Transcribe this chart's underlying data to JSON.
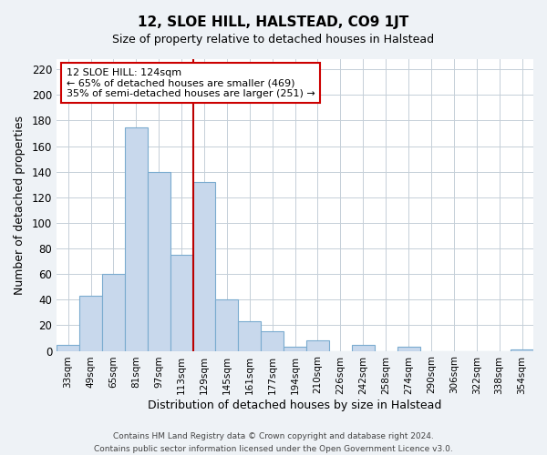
{
  "title": "12, SLOE HILL, HALSTEAD, CO9 1JT",
  "subtitle": "Size of property relative to detached houses in Halstead",
  "xlabel": "Distribution of detached houses by size in Halstead",
  "ylabel": "Number of detached properties",
  "bar_labels": [
    "33sqm",
    "49sqm",
    "65sqm",
    "81sqm",
    "97sqm",
    "113sqm",
    "129sqm",
    "145sqm",
    "161sqm",
    "177sqm",
    "194sqm",
    "210sqm",
    "226sqm",
    "242sqm",
    "258sqm",
    "274sqm",
    "290sqm",
    "306sqm",
    "322sqm",
    "338sqm",
    "354sqm"
  ],
  "bar_heights": [
    5,
    43,
    60,
    175,
    140,
    75,
    132,
    40,
    23,
    15,
    3,
    8,
    0,
    5,
    0,
    3,
    0,
    0,
    0,
    0,
    1
  ],
  "bar_color": "#c8d8ec",
  "bar_edge_color": "#7aabcf",
  "ylim": [
    0,
    228
  ],
  "yticks": [
    0,
    20,
    40,
    60,
    80,
    100,
    120,
    140,
    160,
    180,
    200,
    220
  ],
  "property_bin_index": 5.5,
  "annotation_title": "12 SLOE HILL: 124sqm",
  "annotation_line1": "← 65% of detached houses are smaller (469)",
  "annotation_line2": "35% of semi-detached houses are larger (251) →",
  "vline_color": "#bb0000",
  "annotation_box_edge_color": "#cc0000",
  "footer_line1": "Contains HM Land Registry data © Crown copyright and database right 2024.",
  "footer_line2": "Contains public sector information licensed under the Open Government Licence v3.0.",
  "bg_color": "#eef2f6",
  "plot_bg_color": "#ffffff",
  "grid_color": "#c5cfd8"
}
